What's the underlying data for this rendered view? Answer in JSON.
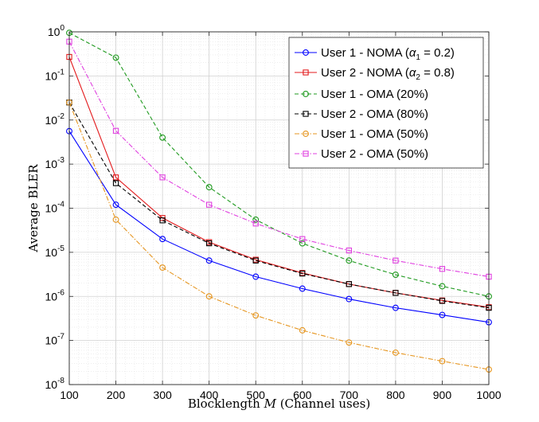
{
  "chart_data": {
    "type": "line",
    "xlabel_prefix": "Blocklength ",
    "xlabel_var": "M",
    "xlabel_suffix": " (Channel uses)",
    "ylabel": "Average BLER",
    "xlim": [
      100,
      1000
    ],
    "ylim_exp": [
      -8,
      0
    ],
    "yscale": "log",
    "grid": true,
    "legend_position": "top-right",
    "x_ticks": [
      "100",
      "200",
      "300",
      "400",
      "500",
      "600",
      "700",
      "800",
      "900",
      "1000"
    ],
    "y_ticks": [
      {
        "base": "10",
        "exp": "0"
      },
      {
        "base": "10",
        "exp": "-1"
      },
      {
        "base": "10",
        "exp": "-2"
      },
      {
        "base": "10",
        "exp": "-3"
      },
      {
        "base": "10",
        "exp": "-4"
      },
      {
        "base": "10",
        "exp": "-5"
      },
      {
        "base": "10",
        "exp": "-6"
      },
      {
        "base": "10",
        "exp": "-7"
      },
      {
        "base": "10",
        "exp": "-8"
      }
    ],
    "x": [
      100,
      200,
      300,
      400,
      500,
      600,
      700,
      800,
      900,
      1000
    ],
    "series": [
      {
        "name": "User 1 - NOMA (α1 = 0.2)",
        "legend_pre": "User 1 - NOMA (",
        "legend_sym": "α",
        "legend_sub": "1",
        "legend_post": " = 0.2)",
        "color": "#0000ff",
        "marker": "circle",
        "dash": "solid",
        "values": [
          0.0056,
          0.00012,
          2e-05,
          6.5e-06,
          2.8e-06,
          1.5e-06,
          8.7e-07,
          5.5e-07,
          3.8e-07,
          2.6e-07
        ]
      },
      {
        "name": "User 2 - NOMA (α2 = 0.8)",
        "legend_pre": "User 2 - NOMA (",
        "legend_sym": "α",
        "legend_sub": "2",
        "legend_post": " = 0.8)",
        "color": "#e31a1c",
        "marker": "square",
        "dash": "solid",
        "values": [
          0.27,
          0.0005,
          6e-05,
          1.7e-05,
          6.8e-06,
          3.4e-06,
          1.9e-06,
          1.2e-06,
          8.1e-07,
          5.7e-07
        ]
      },
      {
        "name": "User 1 - OMA (20%)",
        "legend_pre": "User 1 - OMA (20%)",
        "color": "#1f9a1f",
        "marker": "circle",
        "dash": "dash",
        "values": [
          0.95,
          0.26,
          0.004,
          0.0003,
          5.5e-05,
          1.6e-05,
          6.5e-06,
          3.1e-06,
          1.7e-06,
          1e-06
        ]
      },
      {
        "name": "User 2 - OMA (80%)",
        "legend_pre": "User 2 - OMA (80%)",
        "color": "#000000",
        "marker": "square",
        "dash": "dash",
        "values": [
          0.025,
          0.00037,
          5.3e-05,
          1.6e-05,
          6.5e-06,
          3.3e-06,
          1.9e-06,
          1.2e-06,
          7.9e-07,
          5.5e-07
        ]
      },
      {
        "name": "User 1 - OMA (50%)",
        "legend_pre": "User 1 - OMA (50%)",
        "color": "#e69620",
        "marker": "circle",
        "dash": "dashdot",
        "values": [
          0.025,
          5.5e-05,
          4.5e-06,
          1e-06,
          3.7e-07,
          1.7e-07,
          9e-08,
          5.3e-08,
          3.4e-08,
          2.2e-08
        ]
      },
      {
        "name": "User 2 - OMA (50%)",
        "legend_pre": "User 2 - OMA (50%)",
        "color": "#e040e0",
        "marker": "square",
        "dash": "dashdot",
        "values": [
          0.6,
          0.0057,
          0.0005,
          0.00012,
          4.5e-05,
          2e-05,
          1.1e-05,
          6.5e-06,
          4.2e-06,
          2.8e-06
        ]
      }
    ]
  }
}
